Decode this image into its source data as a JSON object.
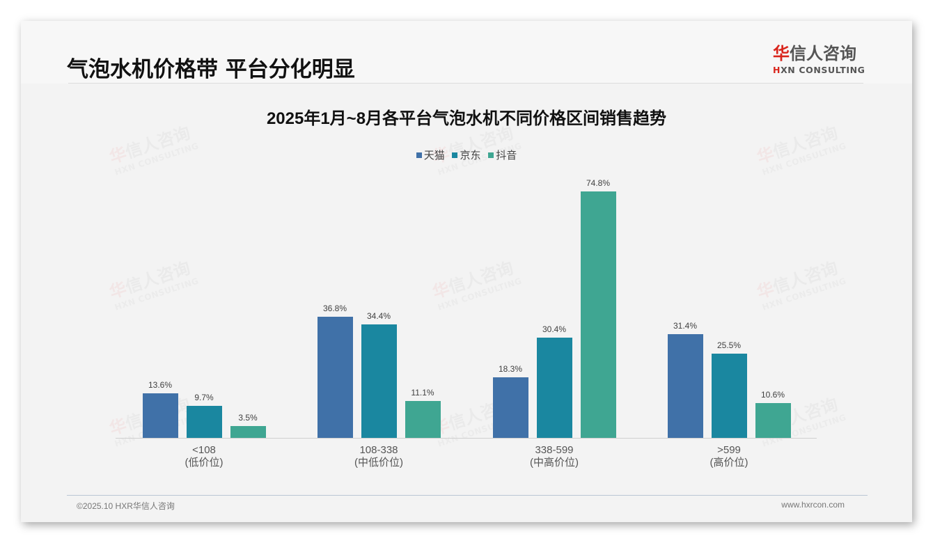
{
  "header": {
    "title": "气泡水机价格带 平台分化明显",
    "logo": {
      "cn_first": "华",
      "cn_rest": "信人咨询",
      "en_first": "H",
      "en_rest": "XN CONSULTING"
    }
  },
  "colors": {
    "tmall": "#4071a8",
    "jd": "#1a87a0",
    "douyin": "#3fa692",
    "logo_red": "#d9251c"
  },
  "watermark": {
    "cn_first": "华",
    "cn_rest": "信人咨询",
    "en": "HXN CONSULTING"
  },
  "chart_data": {
    "type": "bar",
    "title": "2025年1月~8月各平台气泡水机不同价格区间销售趋势",
    "xlabel": "",
    "ylabel": "",
    "ylim": [
      0,
      80
    ],
    "grid": false,
    "legend_position": "top",
    "categories": [
      "<108\n(低价位)",
      "108-338\n(中低价位)",
      "338-599\n(中高价位)",
      ">599\n(高价位)"
    ],
    "category_lines": [
      [
        "<108",
        "(低价位)"
      ],
      [
        "108-338",
        "(中低价位)"
      ],
      [
        "338-599",
        "(中高价位)"
      ],
      [
        ">599",
        "(高价位)"
      ]
    ],
    "series": [
      {
        "name": "天猫",
        "color": "#4071a8",
        "values": [
          13.6,
          36.8,
          18.3,
          31.4
        ],
        "labels": [
          "13.6%",
          "36.8%",
          "18.3%",
          "31.4%"
        ]
      },
      {
        "name": "京东",
        "color": "#1a87a0",
        "values": [
          9.7,
          34.4,
          30.4,
          25.5
        ],
        "labels": [
          "9.7%",
          "34.4%",
          "30.4%",
          "25.5%"
        ]
      },
      {
        "name": "抖音",
        "color": "#3fa692",
        "values": [
          3.5,
          11.1,
          74.8,
          10.6
        ],
        "labels": [
          "3.5%",
          "11.1%",
          "74.8%",
          "10.6%"
        ]
      }
    ],
    "unit": "%"
  },
  "footer": {
    "copyright": "©2025.10 HXR华信人咨询",
    "website": "www.hxrcon.com"
  }
}
